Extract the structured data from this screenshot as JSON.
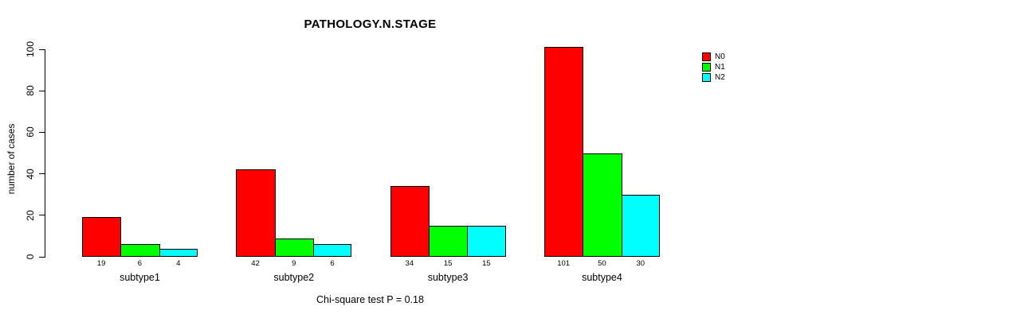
{
  "chart_data": {
    "type": "bar",
    "title": "PATHOLOGY.N.STAGE",
    "ylabel": "number of cases",
    "xlabel": "",
    "footnote": "Chi-square test P = 0.18",
    "categories": [
      "subtype1",
      "subtype2",
      "subtype3",
      "subtype4"
    ],
    "series": [
      {
        "name": "N0",
        "color": "#FF0000",
        "values": [
          19,
          42,
          34,
          101
        ]
      },
      {
        "name": "N1",
        "color": "#00FF00",
        "values": [
          6,
          9,
          15,
          50
        ]
      },
      {
        "name": "N2",
        "color": "#00FFFF",
        "values": [
          4,
          6,
          15,
          30
        ]
      }
    ],
    "bar_value_labels": [
      [
        "19",
        "6",
        "4"
      ],
      [
        "42",
        "9",
        "6"
      ],
      [
        "34",
        "15",
        "15"
      ],
      [
        "101",
        "50",
        "30"
      ]
    ],
    "ylim": [
      0,
      100
    ],
    "yticks": [
      0,
      20,
      40,
      60,
      80,
      100
    ],
    "grid": false,
    "legend_position": "top-right",
    "background": "#FFFFFF",
    "axis_color": "#000000"
  }
}
